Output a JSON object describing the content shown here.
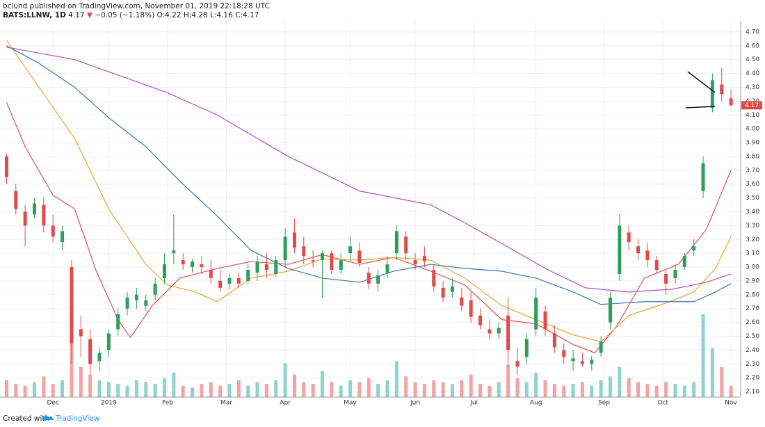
{
  "header": {
    "line1": "bclund published on TradingView.com, November 01, 2019 22:18:28 UTC",
    "symbol": "BATS:LLNW, 1D",
    "last": "4.17",
    "change": "−0.05 (−1.18%)",
    "ohlc": "O:4.22 H:4.28 L:4.16 C:4.17"
  },
  "footer": {
    "created": "Created with",
    "brand": "TradingView"
  },
  "chart_data": {
    "type": "candlestick",
    "up_color": "#2e9e5b",
    "down_color": "#e04a4a",
    "volume_up_color": "#8fd3cc",
    "volume_down_color": "#f3a3a3",
    "x": [
      0,
      3,
      6,
      9,
      12,
      15,
      18,
      21,
      24,
      27,
      30,
      33,
      36,
      39,
      42,
      45,
      48,
      51,
      54,
      57,
      60,
      63,
      66,
      69,
      72,
      75,
      78,
      81,
      84,
      87,
      90,
      93,
      96,
      99,
      102,
      105,
      108,
      111,
      114,
      117,
      120,
      123,
      126,
      129,
      132,
      135,
      138,
      141,
      144,
      147,
      150,
      153,
      156,
      159,
      162,
      165,
      168,
      171,
      174,
      177,
      180,
      183,
      186,
      189,
      192,
      195,
      198,
      201,
      204,
      207,
      210,
      213,
      216,
      219,
      222,
      225,
      228,
      231,
      234
    ],
    "open": [
      3.8,
      3.55,
      3.4,
      3.38,
      3.45,
      3.3,
      3.18,
      3.0,
      2.55,
      2.48,
      2.32,
      2.4,
      2.55,
      2.7,
      2.76,
      2.72,
      2.8,
      2.92,
      3.1,
      3.05,
      3.0,
      3.02,
      2.98,
      2.9,
      2.88,
      2.92,
      2.9,
      2.96,
      3.02,
      2.95,
      3.05,
      3.25,
      3.15,
      3.05,
      3.05,
      3.1,
      2.98,
      3.1,
      3.12,
      2.96,
      2.88,
      2.96,
      3.1,
      3.22,
      3.05,
      3.08,
      2.98,
      2.85,
      2.82,
      2.78,
      2.76,
      2.65,
      2.55,
      2.52,
      2.65,
      2.32,
      2.35,
      2.55,
      2.68,
      2.52,
      2.4,
      2.32,
      2.32,
      2.3,
      2.38,
      2.6,
      2.95,
      3.25,
      3.15,
      3.12,
      3.05,
      2.95,
      2.92,
      3.0,
      3.12,
      3.55,
      4.15,
      4.32,
      4.22
    ],
    "high": [
      3.82,
      3.6,
      3.45,
      3.5,
      3.5,
      3.38,
      3.3,
      3.05,
      2.65,
      2.55,
      2.42,
      2.55,
      2.7,
      2.82,
      2.85,
      2.8,
      2.92,
      3.1,
      3.38,
      3.1,
      3.06,
      3.08,
      3.05,
      2.98,
      2.95,
      2.96,
      3.02,
      3.08,
      3.1,
      3.08,
      3.28,
      3.35,
      3.22,
      3.12,
      3.12,
      3.12,
      3.1,
      3.22,
      3.18,
      3.0,
      2.98,
      3.08,
      3.3,
      3.26,
      3.1,
      3.15,
      3.02,
      2.9,
      2.92,
      2.85,
      2.82,
      2.7,
      2.62,
      2.6,
      2.78,
      2.42,
      2.52,
      2.85,
      2.72,
      2.58,
      2.45,
      2.4,
      2.38,
      2.36,
      2.5,
      2.82,
      3.38,
      3.3,
      3.2,
      3.18,
      3.08,
      2.98,
      3.02,
      3.1,
      3.2,
      3.8,
      4.4,
      4.44,
      4.28
    ],
    "low": [
      3.6,
      3.38,
      3.15,
      3.35,
      3.25,
      3.18,
      3.12,
      2.3,
      2.35,
      2.22,
      2.25,
      2.35,
      2.5,
      2.65,
      2.7,
      2.68,
      2.76,
      2.88,
      3.02,
      2.98,
      2.96,
      2.95,
      2.88,
      2.82,
      2.84,
      2.85,
      2.88,
      2.9,
      2.92,
      2.93,
      3.0,
      3.1,
      3.02,
      3.0,
      2.78,
      2.95,
      2.95,
      3.04,
      3.0,
      2.84,
      2.82,
      2.92,
      3.05,
      3.05,
      2.98,
      3.0,
      2.82,
      2.75,
      2.78,
      2.68,
      2.6,
      2.55,
      2.48,
      2.48,
      2.28,
      2.22,
      2.3,
      2.5,
      2.5,
      2.38,
      2.3,
      2.25,
      2.28,
      2.25,
      2.35,
      2.55,
      2.9,
      3.12,
      3.05,
      3.0,
      2.95,
      2.8,
      2.88,
      2.98,
      3.08,
      3.5,
      4.12,
      4.2,
      4.16
    ],
    "close": [
      3.65,
      3.42,
      3.3,
      3.46,
      3.3,
      3.22,
      3.26,
      2.45,
      2.5,
      2.3,
      2.38,
      2.52,
      2.66,
      2.78,
      2.8,
      2.76,
      2.88,
      3.02,
      3.12,
      3.02,
      3.04,
      3.0,
      2.92,
      2.85,
      2.92,
      2.88,
      2.98,
      3.04,
      2.98,
      3.05,
      3.22,
      3.14,
      3.08,
      3.04,
      3.1,
      2.98,
      3.05,
      3.15,
      3.03,
      2.88,
      2.94,
      3.02,
      3.26,
      3.1,
      3.02,
      3.04,
      2.86,
      2.78,
      2.86,
      2.72,
      2.64,
      2.58,
      2.52,
      2.56,
      2.4,
      2.28,
      2.48,
      2.78,
      2.55,
      2.42,
      2.35,
      2.34,
      2.3,
      2.33,
      2.46,
      2.78,
      3.3,
      3.18,
      3.1,
      3.05,
      2.98,
      2.88,
      2.98,
      3.08,
      3.15,
      3.75,
      4.35,
      4.25,
      4.17
    ],
    "volume": [
      0.9,
      0.7,
      0.6,
      0.8,
      1.1,
      0.7,
      0.9,
      4.4,
      1.6,
      1.2,
      0.9,
      0.8,
      0.7,
      0.6,
      0.9,
      0.8,
      0.7,
      1.0,
      1.3,
      0.6,
      0.5,
      0.7,
      0.8,
      0.6,
      0.7,
      0.9,
      0.6,
      0.8,
      0.7,
      0.9,
      1.8,
      1.2,
      0.8,
      0.7,
      1.4,
      0.8,
      0.6,
      0.9,
      0.8,
      1.0,
      0.7,
      0.9,
      1.9,
      1.1,
      0.8,
      0.7,
      0.9,
      0.8,
      0.7,
      0.9,
      1.2,
      0.7,
      0.6,
      0.8,
      1.7,
      1.0,
      0.8,
      1.3,
      0.9,
      0.7,
      0.6,
      0.7,
      0.8,
      0.6,
      0.9,
      1.1,
      1.6,
      1.0,
      0.8,
      0.7,
      0.6,
      0.8,
      0.7,
      0.6,
      0.8,
      4.4,
      2.6,
      1.6,
      0.6
    ],
    "xlim": [
      -1,
      236
    ],
    "ylim": [
      2.06,
      4.78
    ],
    "volume_lim": [
      0,
      20
    ],
    "xticks": [
      {
        "value": 15,
        "label": "Dec"
      },
      {
        "value": 33,
        "label": "2019"
      },
      {
        "value": 52,
        "label": "Feb"
      },
      {
        "value": 71,
        "label": "Mar"
      },
      {
        "value": 90,
        "label": "Apr"
      },
      {
        "value": 111,
        "label": "May"
      },
      {
        "value": 132,
        "label": "Jun"
      },
      {
        "value": 151,
        "label": "Jul"
      },
      {
        "value": 171,
        "label": "Aug"
      },
      {
        "value": 193,
        "label": "Sep"
      },
      {
        "value": 212,
        "label": "Oct"
      },
      {
        "value": 234,
        "label": "Nov"
      }
    ],
    "yticks": [
      {
        "value": 2.1,
        "label": "2.10"
      },
      {
        "value": 2.2,
        "label": "2.20"
      },
      {
        "value": 2.3,
        "label": "2.30"
      },
      {
        "value": 2.4,
        "label": "2.40"
      },
      {
        "value": 2.5,
        "label": "2.50"
      },
      {
        "value": 2.6,
        "label": "2.60"
      },
      {
        "value": 2.7,
        "label": "2.70"
      },
      {
        "value": 2.8,
        "label": "2.80"
      },
      {
        "value": 2.9,
        "label": "2.90"
      },
      {
        "value": 3.0,
        "label": "3.00"
      },
      {
        "value": 3.1,
        "label": "3.10"
      },
      {
        "value": 3.2,
        "label": "3.20"
      },
      {
        "value": 3.3,
        "label": "3.30"
      },
      {
        "value": 3.4,
        "label": "3.40"
      },
      {
        "value": 3.5,
        "label": "3.50"
      },
      {
        "value": 3.6,
        "label": "3.60"
      },
      {
        "value": 3.7,
        "label": "3.70"
      },
      {
        "value": 3.8,
        "label": "3.80"
      },
      {
        "value": 3.9,
        "label": "3.90"
      },
      {
        "value": 4.0,
        "label": "4.00"
      },
      {
        "value": 4.1,
        "label": "4.10"
      },
      {
        "value": 4.2,
        "label": "4.20"
      },
      {
        "value": 4.3,
        "label": "4.30"
      },
      {
        "value": 4.4,
        "label": "4.40"
      },
      {
        "value": 4.5,
        "label": "4.50"
      },
      {
        "value": 4.6,
        "label": "4.60"
      },
      {
        "value": 4.7,
        "label": "4.70"
      }
    ],
    "grid": true,
    "series": [
      {
        "color": "#d9544f",
        "x": [
          0,
          6,
          15,
          22,
          29,
          36,
          40,
          47,
          56,
          68,
          79,
          91,
          102,
          114,
          125,
          137,
          148,
          160,
          171,
          183,
          190,
          197,
          206,
          217,
          226,
          234
        ],
        "values": [
          4.19,
          3.87,
          3.52,
          3.42,
          2.97,
          2.62,
          2.49,
          2.72,
          2.92,
          2.99,
          3.04,
          3.02,
          3.09,
          3.02,
          3.07,
          2.97,
          2.87,
          2.62,
          2.59,
          2.44,
          2.38,
          2.57,
          2.92,
          3.02,
          3.27,
          3.7
        ]
      },
      {
        "color": "#f5a033",
        "x": [
          0,
          8,
          22,
          33,
          45,
          52,
          61,
          68,
          79,
          91,
          102,
          114,
          125,
          137,
          148,
          160,
          171,
          183,
          192,
          201,
          213,
          222,
          229,
          234
        ],
        "values": [
          4.64,
          4.38,
          3.93,
          3.42,
          3.02,
          2.87,
          2.82,
          2.75,
          2.92,
          2.97,
          3.06,
          3.05,
          3.07,
          3.05,
          2.92,
          2.72,
          2.62,
          2.51,
          2.46,
          2.65,
          2.74,
          2.82,
          2.99,
          3.22
        ]
      },
      {
        "color": "#3a78b5",
        "x": [
          0,
          10,
          22,
          33,
          45,
          56,
          68,
          79,
          91,
          102,
          114,
          125,
          137,
          148,
          160,
          171,
          183,
          192,
          206,
          222,
          229,
          234
        ],
        "values": [
          4.6,
          4.48,
          4.3,
          4.08,
          3.87,
          3.62,
          3.37,
          3.12,
          2.99,
          2.92,
          2.89,
          2.97,
          3.02,
          2.99,
          2.97,
          2.92,
          2.82,
          2.73,
          2.75,
          2.75,
          2.82,
          2.88
        ]
      },
      {
        "color": "#b04fc4",
        "x": [
          0,
          22,
          52,
          68,
          91,
          114,
          137,
          148,
          160,
          174,
          187,
          201,
          215,
          226,
          234
        ],
        "values": [
          4.59,
          4.5,
          4.26,
          4.1,
          3.8,
          3.55,
          3.45,
          3.32,
          3.17,
          2.99,
          2.85,
          2.82,
          2.84,
          2.89,
          2.95
        ]
      }
    ]
  }
}
